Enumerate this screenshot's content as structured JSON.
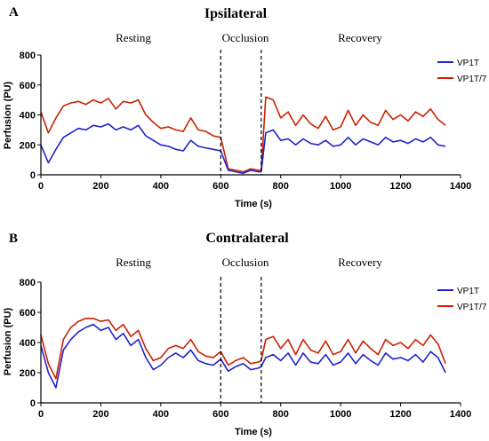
{
  "chart_data": [
    {
      "type": "line",
      "panel_letter": "A",
      "title": "Ipsilateral",
      "phase_labels": [
        "Resting",
        "Occlusion",
        "Recovery"
      ],
      "occlusion_markers_x": [
        600,
        735
      ],
      "xlabel": "Time (s)",
      "ylabel": "Perfusion (PU)",
      "xlim": [
        0,
        1400
      ],
      "ylim": [
        0,
        800
      ],
      "x_ticks": [
        0,
        200,
        400,
        600,
        800,
        1000,
        1200,
        1400
      ],
      "y_ticks": [
        0,
        200,
        400,
        600,
        800
      ],
      "legend_position": "top-right",
      "series": [
        {
          "name": "VP1T",
          "color": "#2222cc",
          "x": [
            0,
            25,
            50,
            75,
            100,
            125,
            150,
            175,
            200,
            225,
            250,
            275,
            300,
            325,
            350,
            375,
            400,
            425,
            450,
            475,
            500,
            525,
            550,
            575,
            600,
            625,
            650,
            675,
            700,
            725,
            735,
            750,
            775,
            800,
            825,
            850,
            875,
            900,
            925,
            950,
            975,
            1000,
            1025,
            1050,
            1075,
            1100,
            1125,
            1150,
            1175,
            1200,
            1225,
            1250,
            1275,
            1300,
            1325,
            1350
          ],
          "y": [
            200,
            80,
            170,
            250,
            280,
            310,
            300,
            330,
            320,
            340,
            300,
            320,
            300,
            330,
            260,
            230,
            200,
            190,
            170,
            160,
            230,
            190,
            180,
            170,
            160,
            30,
            20,
            10,
            30,
            20,
            20,
            280,
            300,
            230,
            240,
            200,
            240,
            210,
            200,
            230,
            190,
            200,
            250,
            200,
            240,
            220,
            200,
            250,
            220,
            230,
            210,
            240,
            220,
            250,
            200,
            190
          ]
        },
        {
          "name": "VP1T/7",
          "color": "#cc2200",
          "x": [
            0,
            25,
            50,
            75,
            100,
            125,
            150,
            175,
            200,
            225,
            250,
            275,
            300,
            325,
            350,
            375,
            400,
            425,
            450,
            475,
            500,
            525,
            550,
            575,
            600,
            625,
            650,
            675,
            700,
            725,
            735,
            750,
            775,
            800,
            825,
            850,
            875,
            900,
            925,
            950,
            975,
            1000,
            1025,
            1050,
            1075,
            1100,
            1125,
            1150,
            1175,
            1200,
            1225,
            1250,
            1275,
            1300,
            1325,
            1350
          ],
          "y": [
            420,
            280,
            380,
            460,
            480,
            490,
            470,
            500,
            480,
            510,
            440,
            490,
            480,
            500,
            400,
            350,
            310,
            320,
            300,
            290,
            380,
            300,
            290,
            260,
            250,
            40,
            30,
            20,
            40,
            30,
            30,
            520,
            500,
            380,
            420,
            330,
            400,
            340,
            310,
            390,
            300,
            320,
            430,
            330,
            400,
            350,
            330,
            430,
            370,
            400,
            360,
            420,
            390,
            440,
            370,
            330
          ]
        }
      ]
    },
    {
      "type": "line",
      "panel_letter": "B",
      "title": "Contralateral",
      "phase_labels": [
        "Resting",
        "Occlusion",
        "Recovery"
      ],
      "occlusion_markers_x": [
        600,
        735
      ],
      "xlabel": "Time (s)",
      "ylabel": "Perfusion (PU)",
      "xlim": [
        0,
        1400
      ],
      "ylim": [
        0,
        800
      ],
      "x_ticks": [
        0,
        200,
        400,
        600,
        800,
        1000,
        1200,
        1400
      ],
      "y_ticks": [
        0,
        200,
        400,
        600,
        800
      ],
      "legend_position": "top-right",
      "series": [
        {
          "name": "VP1T",
          "color": "#2222cc",
          "x": [
            0,
            25,
            50,
            75,
            100,
            125,
            150,
            175,
            200,
            225,
            250,
            275,
            300,
            325,
            350,
            375,
            400,
            425,
            450,
            475,
            500,
            525,
            550,
            575,
            600,
            625,
            650,
            675,
            700,
            725,
            735,
            750,
            775,
            800,
            825,
            850,
            875,
            900,
            925,
            950,
            975,
            1000,
            1025,
            1050,
            1075,
            1100,
            1125,
            1150,
            1175,
            1200,
            1225,
            1250,
            1275,
            1300,
            1325,
            1350
          ],
          "y": [
            380,
            200,
            100,
            350,
            420,
            470,
            500,
            520,
            480,
            500,
            420,
            460,
            380,
            420,
            300,
            220,
            250,
            300,
            330,
            300,
            350,
            280,
            260,
            250,
            290,
            210,
            240,
            260,
            220,
            230,
            240,
            300,
            320,
            280,
            330,
            250,
            330,
            270,
            260,
            320,
            250,
            270,
            330,
            260,
            320,
            280,
            250,
            330,
            290,
            300,
            280,
            320,
            270,
            340,
            300,
            200
          ]
        },
        {
          "name": "VP1T/7",
          "color": "#cc2200",
          "x": [
            0,
            25,
            50,
            75,
            100,
            125,
            150,
            175,
            200,
            225,
            250,
            275,
            300,
            325,
            350,
            375,
            400,
            425,
            450,
            475,
            500,
            525,
            550,
            575,
            600,
            625,
            650,
            675,
            700,
            725,
            735,
            750,
            775,
            800,
            825,
            850,
            875,
            900,
            925,
            950,
            975,
            1000,
            1025,
            1050,
            1075,
            1100,
            1125,
            1150,
            1175,
            1200,
            1225,
            1250,
            1275,
            1300,
            1325,
            1350
          ],
          "y": [
            450,
            260,
            160,
            420,
            500,
            540,
            560,
            560,
            540,
            550,
            480,
            520,
            440,
            480,
            360,
            280,
            300,
            360,
            380,
            360,
            420,
            340,
            310,
            300,
            340,
            250,
            280,
            300,
            260,
            270,
            280,
            420,
            440,
            360,
            420,
            320,
            420,
            350,
            330,
            410,
            320,
            340,
            420,
            330,
            410,
            360,
            320,
            420,
            380,
            400,
            360,
            420,
            380,
            450,
            390,
            260
          ]
        }
      ]
    }
  ]
}
